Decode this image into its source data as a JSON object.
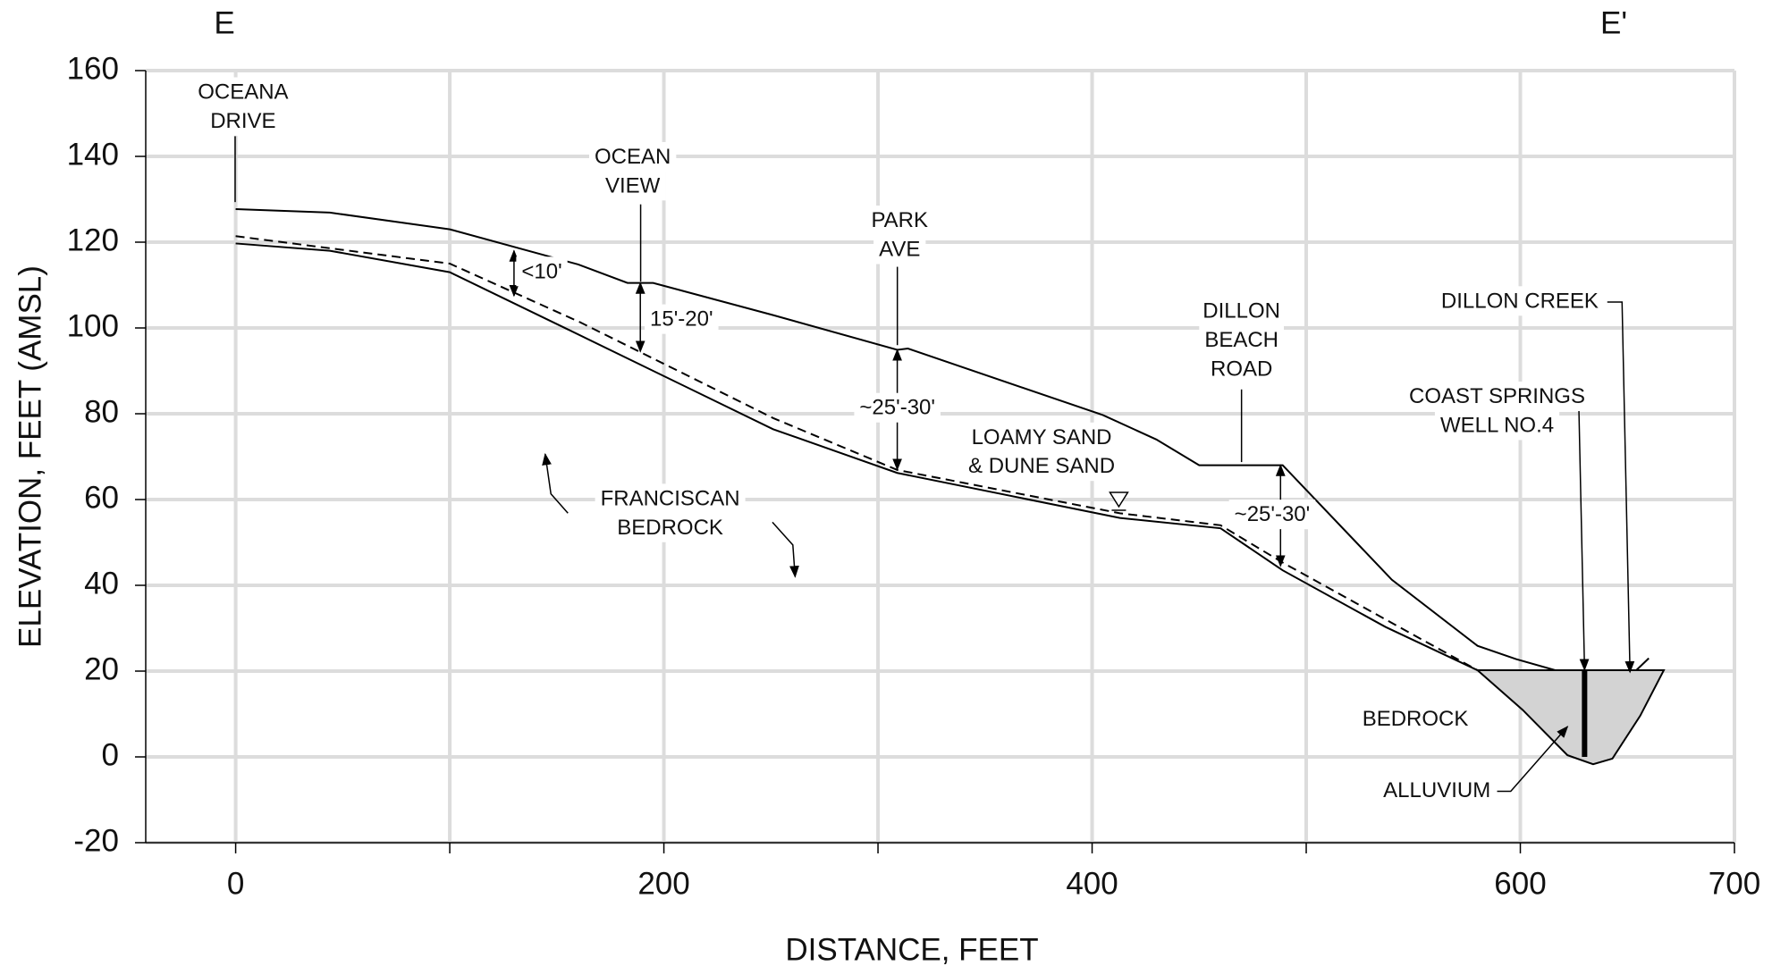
{
  "chart_data": {
    "type": "line",
    "title_left": "E",
    "title_right": "E'",
    "xlabel": "DISTANCE, FEET",
    "ylabel": "ELEVATION, FEET (AMSL)",
    "xlim": [
      -42,
      700
    ],
    "ylim": [
      -20,
      160
    ],
    "xticks": [
      0,
      200,
      400,
      600,
      700
    ],
    "x_minor_ticks": [
      100,
      300,
      500
    ],
    "yticks": [
      -20,
      0,
      20,
      40,
      60,
      80,
      100,
      120,
      140,
      160
    ],
    "grid": true,
    "series": [
      {
        "color": "#000000",
        "style": "solid",
        "x": [
          0,
          44,
          100,
          160,
          183,
          195,
          251,
          309,
          314,
          405,
          430,
          450,
          489,
          540,
          580,
          598,
          617,
          630,
          641,
          651,
          660
        ],
        "values": [
          127.7,
          126.9,
          123,
          114.8,
          110.5,
          110.5,
          103,
          94.9,
          95.2,
          79.7,
          74,
          68,
          68,
          41.3,
          25.9,
          22.8,
          20.1,
          20,
          20,
          18.7,
          23
        ]
      },
      {
        "color": "#000000",
        "style": "dashed",
        "x": [
          0,
          100,
          161,
          251,
          309,
          413,
          460,
          489,
          580,
          630,
          664
        ],
        "values": [
          121.4,
          115,
          101.3,
          79,
          66.9,
          56.8,
          54,
          45.3,
          20.2,
          18,
          18.7
        ]
      },
      {
        "color": "#000000",
        "style": "solid",
        "x": [
          0,
          44,
          100,
          155,
          251,
          309,
          413,
          460,
          489,
          537,
          580
        ],
        "values": [
          119.7,
          118,
          113,
          99.7,
          76.4,
          66.2,
          55.7,
          53.3,
          43.5,
          30.3,
          20.2
        ]
      },
      {
        "color": "#000000",
        "style": "solid",
        "fill": "#d3d3d3",
        "x": [
          580,
          601,
          622,
          634,
          643,
          656,
          667
        ],
        "values": [
          20.2,
          11,
          0.4,
          -1.7,
          -0.4,
          9.6,
          20.2
        ]
      }
    ],
    "well_x": 630,
    "well_top": 20,
    "well_bottom": 0,
    "annotations": [
      {
        "lines": [
          "OCEANA",
          "DRIVE"
        ]
      },
      {
        "lines": [
          "OCEAN",
          "VIEW"
        ]
      },
      {
        "lines": [
          "PARK",
          "AVE"
        ]
      },
      {
        "lines": [
          "DILLON",
          "BEACH",
          "ROAD"
        ]
      },
      {
        "lines": [
          "DILLON CREEK"
        ]
      },
      {
        "lines": [
          "COAST SPRINGS",
          "WELL NO.4"
        ]
      },
      {
        "lines": [
          "LOAMY SAND",
          "& DUNE SAND"
        ]
      },
      {
        "lines": [
          "FRANCISCAN",
          "BEDROCK"
        ]
      },
      {
        "lines": [
          "BEDROCK"
        ]
      },
      {
        "lines": [
          "ALLUVIUM"
        ]
      }
    ],
    "dimensions": [
      {
        "label": "<10'",
        "x": 130,
        "top": 118,
        "bottom": 107.5
      },
      {
        "label": "15'-20'",
        "x": 189,
        "top": 110.5,
        "bottom": 94.5
      },
      {
        "label": "~25'-30'",
        "x": 309,
        "top": 94.9,
        "bottom": 67
      },
      {
        "label": "~25'-30'",
        "x": 488,
        "top": 68,
        "bottom": 44.5
      }
    ]
  }
}
